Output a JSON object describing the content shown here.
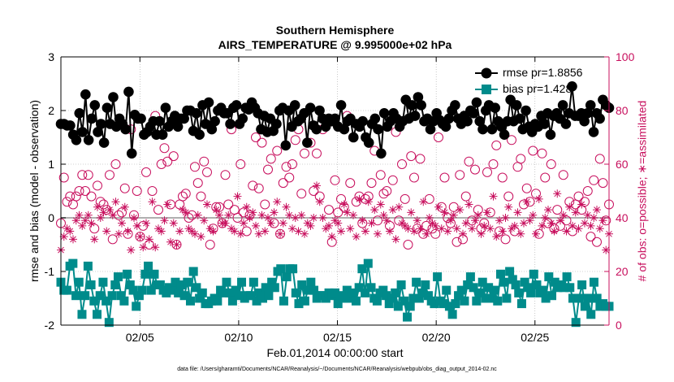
{
  "title": "Southern Hemisphere",
  "subtitle": "AIRS_TEMPERATURE @ 9.995000e+02 hPa",
  "xlabel": "Feb.01,2014 00:00:00 start",
  "ylabel_left": "rmse and bias (model - observation)",
  "ylabel_right": "# of obs: o=possible; ∗=assimilated",
  "footnote": "data file: /Users/gharamti/Documents/NCAR/Reanalysis/~/Documents/NCAR/Reanalysis/webpub/obs_diag_output_2014-02.nc",
  "legend": {
    "rmse_label": "rmse pr=1.8856",
    "bias_label": "bias pr=1.428",
    "placement": "top-right"
  },
  "colors": {
    "rmse": "#000000",
    "bias": "#008b8b",
    "obs": "#c8105e",
    "zero_line": "#b0b0b0",
    "grid": "#000000"
  },
  "chart_data": {
    "type": "line",
    "x_start_date": "2014-02-01",
    "xlim_days": [
      1,
      28.75
    ],
    "x_tick_labels": [
      "02/05",
      "02/10",
      "02/15",
      "02/20",
      "02/25"
    ],
    "x_tick_days": [
      5,
      10,
      15,
      20,
      25
    ],
    "ylim_left": [
      -2,
      3
    ],
    "y_ticks_left": [
      -2,
      -1,
      0,
      1,
      2,
      3
    ],
    "ylim_right": [
      0,
      100
    ],
    "y_ticks_right": [
      0,
      20,
      40,
      60,
      80,
      100
    ],
    "grid": true,
    "series": [
      {
        "name": "rmse pr=1.8856",
        "axis": "left",
        "marker": "circle",
        "values": [
          1.75,
          1.75,
          1.72,
          1.72,
          1.55,
          1.45,
          1.95,
          1.6,
          2.3,
          1.45,
          1.85,
          2.1,
          1.6,
          1.75,
          1.4,
          2.05,
          1.75,
          2.25,
          1.7,
          1.85,
          1.75,
          1.65,
          2.35,
          1.2,
          1.92,
          1.85,
          1.85,
          1.55,
          1.6,
          1.7,
          1.8,
          1.55,
          1.8,
          1.55,
          2.05,
          1.7,
          1.8,
          1.9,
          1.7,
          1.85,
          1.85,
          2.0,
          2.0,
          1.62,
          1.95,
          1.55,
          2.1,
          1.75,
          2.15,
          1.65,
          1.8,
          2.0,
          2.05,
          1.95,
          1.95,
          1.75,
          2.05,
          2.1,
          1.75,
          1.85,
          2.05,
          2.02,
          2.15,
          2.05,
          1.95,
          1.65,
          1.9,
          1.6,
          1.85,
          1.62,
          1.75,
          2.0,
          2.05,
          1.35,
          2.0,
          1.7,
          2.1,
          1.8,
          1.85,
          1.95,
          1.4,
          2.05,
          1.72,
          1.65,
          2.0,
          1.85,
          1.7,
          1.85,
          1.8,
          1.85,
          1.7,
          2.1,
          1.65,
          1.8,
          1.85,
          1.5,
          1.75,
          1.7,
          1.8,
          1.5,
          1.4,
          1.75,
          1.85,
          1.65,
          1.2,
          1.95,
          1.7,
          1.8,
          1.95,
          1.85,
          1.7,
          1.8,
          2.2,
          1.85,
          2.1,
          1.9,
          2.25,
          2.1,
          1.8,
          1.85,
          1.65,
          1.8,
          1.95,
          1.82,
          1.75,
          1.7,
          1.85,
          2.0,
          2.1,
          1.85,
          1.75,
          1.9,
          1.8,
          2.0,
          1.95,
          2.15,
          1.8,
          1.65,
          2.0,
          2.1,
          1.65,
          2.05,
          1.8,
          1.7,
          1.55,
          1.8,
          2.2,
          1.8,
          2.1,
          1.85,
          1.65,
          2.0,
          1.7,
          1.6,
          1.75,
          1.7,
          1.9,
          1.75,
          1.95,
          1.55,
          1.9,
          1.95,
          1.85,
          2.1,
          1.75,
          1.95,
          2.45,
          1.9,
          1.9,
          1.95,
          1.8,
          1.95,
          2.1,
          1.6,
          1.95,
          1.85,
          2.2,
          2.1,
          2.05
        ]
      },
      {
        "name": "bias pr=1.428",
        "axis": "left",
        "marker": "square",
        "values": [
          -1.2,
          -1.35,
          -1.35,
          -0.9,
          -0.85,
          -1.45,
          -1.2,
          -1.8,
          -1.45,
          -0.9,
          -1.25,
          -1.55,
          -1.8,
          -1.45,
          -1.2,
          -1.55,
          -1.95,
          -1.45,
          -1.25,
          -1.1,
          -1.45,
          -1.55,
          -1.05,
          -1.25,
          -1.35,
          -1.65,
          -1.45,
          -1.35,
          -1.05,
          -0.9,
          -1.35,
          -1.05,
          -1.25,
          -1.25,
          -1.35,
          -1.4,
          -1.3,
          -1.35,
          -1.2,
          -1.4,
          -1.25,
          -1.45,
          -1.2,
          -1.55,
          -1.0,
          -1.3,
          -1.5,
          -1.4,
          -1.6,
          -1.6,
          -1.55,
          -1.5,
          -1.55,
          -1.35,
          -1.4,
          -1.2,
          -1.4,
          -1.55,
          -1.35,
          -1.45,
          -1.2,
          -1.5,
          -1.45,
          -1.45,
          -1.2,
          -1.55,
          -1.4,
          -1.5,
          -1.3,
          -1.45,
          -1.2,
          -1.3,
          -1.0,
          -0.95,
          -1.55,
          -1.1,
          -0.95,
          -0.95,
          -1.4,
          -1.6,
          -1.25,
          -1.55,
          -1.35,
          -1.2,
          -1.35,
          -1.5,
          -1.45,
          -1.45,
          -1.5,
          -1.4,
          -1.45,
          -1.4,
          -1.6,
          -1.45,
          -1.5,
          -1.35,
          -1.5,
          -1.4,
          -1.55,
          -1.3,
          -0.95,
          -1.4,
          -0.85,
          -1.3,
          -1.5,
          -1.55,
          -1.4,
          -1.35,
          -1.45,
          -1.6,
          -1.5,
          -1.4,
          -1.65,
          -1.25,
          -1.55,
          -1.85,
          -1.65,
          -1.5,
          -1.2,
          -1.5,
          -1.4,
          -1.25,
          -1.45,
          -1.55,
          -1.6,
          -1.1,
          -1.55,
          -1.6,
          -1.35,
          -1.65,
          -1.8,
          -1.6,
          -1.45,
          -1.35,
          -1.55,
          -1.25,
          -1.1,
          -1.3,
          -1.55,
          -1.4,
          -1.2,
          -1.5,
          -1.3,
          -1.5,
          -1.35,
          -1.55,
          -1.05,
          -1.2,
          -1.5,
          -1.0,
          -1.15,
          -1.25,
          -1.4,
          -1.6,
          -1.2,
          -1.3,
          -1.4,
          -1.05,
          -1.25,
          -1.4,
          -1.35,
          -1.5,
          -1.1,
          -1.45,
          -1.2,
          -1.3,
          -1.25,
          -1.3,
          -1.1,
          -1.3,
          -1.5,
          -1.95,
          -1.5,
          -1.25,
          -1.65,
          -1.5,
          -1.8,
          -1.2,
          -1.5,
          -1.65,
          -1.6,
          -1.65,
          -1.65
        ]
      },
      {
        "name": "possible",
        "axis": "right",
        "marker": "open-circle",
        "values": [
          38,
          55,
          46,
          48,
          45,
          48,
          50,
          56,
          50,
          56,
          48,
          36,
          52,
          46,
          45,
          43,
          56,
          32,
          60,
          41,
          42,
          51,
          34,
          73,
          41,
          50,
          33,
          37,
          57,
          30,
          50,
          78,
          43,
          60,
          66,
          61,
          45,
          63,
          30,
          45,
          48,
          49,
          40,
          41,
          59,
          53,
          48,
          61,
          57,
          30,
          36,
          44,
          44,
          38,
          56,
          45,
          73,
          43,
          40,
          60,
          42,
          35,
          41,
          52,
          70,
          51,
          68,
          45,
          58,
          62,
          38,
          65,
          34,
          53,
          59,
          55,
          60,
          69,
          73,
          49,
          64,
          68,
          68,
          50,
          64,
          48,
          73,
          74,
          43,
          31,
          54,
          42,
          47,
          44,
          78,
          53,
          70,
          46,
          48,
          38,
          47,
          48,
          53,
          65,
          39,
          56,
          49,
          50,
          37,
          54,
          72,
          39,
          60,
          47,
          30,
          63,
          55,
          36,
          62,
          34,
          37,
          47,
          36,
          34,
          70,
          44,
          55,
          40,
          38,
          44,
          31,
          56,
          32,
          48,
          61,
          39,
          58,
          43,
          36,
          38,
          57,
          42,
          60,
          67,
          35,
          55,
          32,
          48,
          69,
          35,
          59,
          62,
          45,
          51,
          46,
          65,
          49,
          34,
          64,
          55,
          38,
          60,
          36,
          43,
          37,
          56,
          39,
          46,
          35,
          45,
          48,
          43,
          46,
          50,
          33,
          54,
          31,
          62,
          53,
          39,
          45
        ]
      },
      {
        "name": "assimilated",
        "axis": "right",
        "marker": "asterisk",
        "values": [
          28,
          33,
          36,
          35,
          32,
          39,
          41,
          37,
          39,
          41,
          38,
          32,
          44,
          40,
          42,
          35,
          43,
          41,
          46,
          34,
          38,
          44,
          35,
          28,
          40,
          37,
          33,
          29,
          38,
          32,
          46,
          29,
          36,
          35,
          39,
          45,
          31,
          38,
          30,
          35,
          43,
          42,
          36,
          35,
          34,
          41,
          33,
          39,
          45,
          36,
          35,
          43,
          41,
          38,
          38,
          41,
          36,
          35,
          48,
          34,
          38,
          44,
          40,
          42,
          37,
          34,
          41,
          35,
          40,
          38,
          42,
          46,
          34,
          38,
          44,
          41,
          36,
          40,
          35,
          41,
          34,
          38,
          37,
          40,
          52,
          46,
          40,
          36,
          37,
          33,
          39,
          38,
          35,
          45,
          42,
          36,
          41,
          33,
          47,
          39,
          35,
          46,
          38,
          43,
          34,
          45,
          41,
          39,
          35,
          43,
          32,
          44,
          38,
          37,
          36,
          42,
          35,
          39,
          36,
          46,
          34,
          40,
          38,
          37,
          44,
          36,
          42,
          35,
          39,
          41,
          36,
          43,
          34,
          38,
          45,
          36,
          39,
          41,
          34,
          37,
          42,
          36,
          48,
          33,
          39,
          35,
          40,
          44,
          36,
          37,
          42,
          34,
          38,
          46,
          39,
          41,
          34,
          47,
          37,
          40,
          43,
          38,
          35,
          49,
          39,
          41,
          35,
          44,
          37,
          42,
          36,
          45,
          38,
          41,
          37,
          40,
          43,
          36,
          39,
          28,
          34
        ]
      }
    ]
  }
}
